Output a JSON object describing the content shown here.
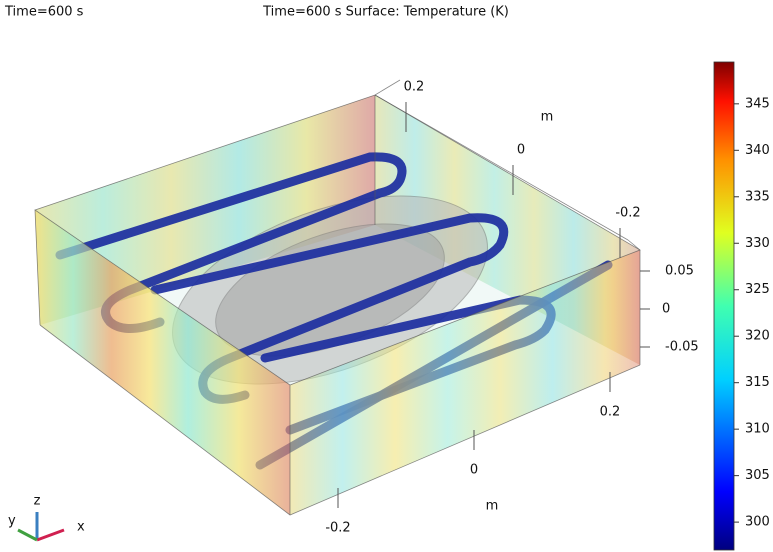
{
  "chart_data": {
    "type": "surface3d",
    "title": "Time=600 s",
    "subtitle": "Time=600 s Surface: Temperature (K)",
    "clim": [
      297,
      349.5
    ],
    "cticks": [
      300,
      305,
      310,
      315,
      320,
      325,
      330,
      335,
      340,
      345
    ],
    "x_axis": {
      "label": "m",
      "ticks": [
        -0.2,
        0,
        0.2
      ]
    },
    "y_axis": {
      "label": "m",
      "ticks": [
        -0.2,
        0,
        0.2
      ]
    },
    "z_axis": {
      "ticks": [
        -0.05,
        0,
        0.05
      ]
    },
    "triad_labels": [
      "x",
      "y",
      "z"
    ]
  }
}
